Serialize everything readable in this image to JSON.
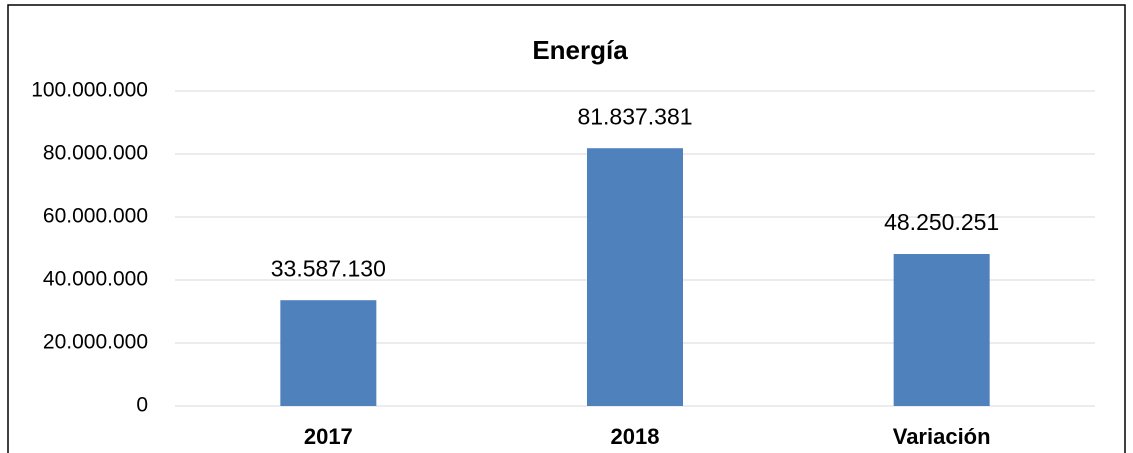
{
  "chart_data": {
    "type": "bar",
    "title": "Energía",
    "categories": [
      "2017",
      "2018",
      "Variación"
    ],
    "values": [
      33587130,
      81837381,
      48250251
    ],
    "value_labels": [
      "33.587.130",
      "81.837.381",
      "48.250.251"
    ],
    "color": "#4f81bd",
    "ylim": [
      0,
      100000000
    ],
    "yticks": [
      0,
      {
        "value": 20000000,
        "label": "20.000.000"
      },
      {
        "value": 40000000,
        "label": "40.000.000"
      },
      {
        "value": 60000000,
        "label": "60.000.000"
      },
      {
        "value": 80000000,
        "label": "80.000.000"
      },
      {
        "value": 100000000,
        "label": "100.000.000"
      }
    ],
    "grid": true
  }
}
